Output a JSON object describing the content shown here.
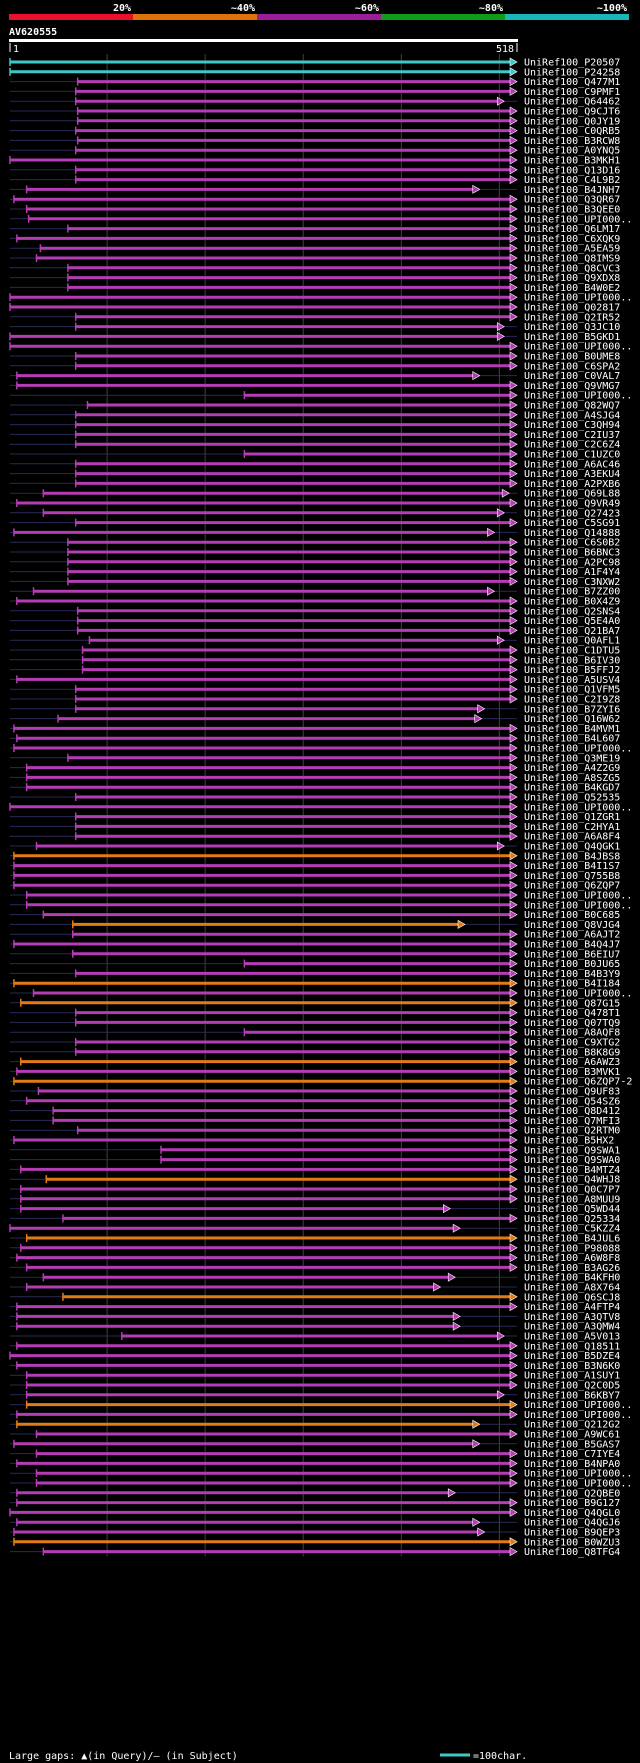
{
  "colors": {
    "background": "#000000",
    "text": "#ffffff",
    "bin_20": "#e8102a",
    "bin_40": "#e0720a",
    "bin_60": "#9a1e9a",
    "bin_80": "#119a1a",
    "bin_100": "#18b6b8",
    "hit_purple": "#b43cb4",
    "hit_orange": "#e27b15",
    "hit_cyan": "#40c8c8",
    "gap_marker": "#ffe060",
    "grid": "#404040",
    "thin_line": "#2a2a55"
  },
  "header": {
    "scale_labels": [
      "20%",
      "~40%",
      "~60%",
      "~80%",
      "~100%"
    ],
    "query_name": "AV620555",
    "ruler_start": "1",
    "ruler_end": "518"
  },
  "footer": {
    "legend_text": "Large gaps: ▲(in Query)/– (in Subject)",
    "scale_text": "=100char."
  },
  "hits": [
    {
      "name": "UniRef100_P20507",
      "start": 1,
      "end": 518,
      "color": "cyan"
    },
    {
      "name": "UniRef100_P24258",
      "start": 1,
      "end": 518,
      "color": "cyan"
    },
    {
      "name": "UniRef100_Q477M1",
      "start": 70,
      "end": 518,
      "color": "purple"
    },
    {
      "name": "UniRef100_C9PMF1",
      "start": 68,
      "end": 518,
      "color": "purple"
    },
    {
      "name": "UniRef100_Q64462",
      "start": 68,
      "end": 505,
      "color": "purple"
    },
    {
      "name": "UniRef100_Q9CJT6",
      "start": 70,
      "end": 518,
      "color": "purple"
    },
    {
      "name": "UniRef100_Q0JY19",
      "start": 70,
      "end": 518,
      "color": "purple"
    },
    {
      "name": "UniRef100_C0QRB5",
      "start": 68,
      "end": 518,
      "color": "purple"
    },
    {
      "name": "UniRef100_B3RCW8",
      "start": 70,
      "end": 518,
      "color": "purple"
    },
    {
      "name": "UniRef100_A0YNQ5",
      "start": 68,
      "end": 518,
      "color": "purple"
    },
    {
      "name": "UniRef100_B3MKH1",
      "start": 1,
      "end": 518,
      "color": "purple"
    },
    {
      "name": "UniRef100_Q13D16",
      "start": 68,
      "end": 518,
      "color": "purple"
    },
    {
      "name": "UniRef100_C4L9B2",
      "start": 68,
      "end": 518,
      "color": "purple"
    },
    {
      "name": "UniRef100_B4JNH7",
      "start": 18,
      "end": 480,
      "color": "purple"
    },
    {
      "name": "UniRef100_Q3QR67",
      "start": 5,
      "end": 518,
      "color": "purple"
    },
    {
      "name": "UniRef100_B3QEE0",
      "start": 18,
      "end": 518,
      "color": "purple"
    },
    {
      "name": "UniRef100_UPI000..",
      "start": 20,
      "end": 518,
      "color": "purple"
    },
    {
      "name": "UniRef100_Q6LM17",
      "start": 60,
      "end": 518,
      "color": "purple"
    },
    {
      "name": "UniRef100_C6XQK9",
      "start": 8,
      "end": 518,
      "color": "purple"
    },
    {
      "name": "UniRef100_A5EA59",
      "start": 32,
      "end": 518,
      "color": "purple"
    },
    {
      "name": "UniRef100_Q8IMS9",
      "start": 28,
      "end": 518,
      "color": "purple"
    },
    {
      "name": "UniRef100_Q8CVC3",
      "start": 60,
      "end": 518,
      "color": "purple"
    },
    {
      "name": "UniRef100_Q9XDX8",
      "start": 60,
      "end": 518,
      "color": "purple"
    },
    {
      "name": "UniRef100_B4W0E2",
      "start": 60,
      "end": 518,
      "color": "purple"
    },
    {
      "name": "UniRef100_UPI000..",
      "start": 1,
      "end": 518,
      "color": "purple"
    },
    {
      "name": "UniRef100_Q02817",
      "start": 1,
      "end": 518,
      "color": "purple"
    },
    {
      "name": "UniRef100_Q2IR52",
      "start": 68,
      "end": 518,
      "color": "purple"
    },
    {
      "name": "UniRef100_Q3JC10",
      "start": 68,
      "end": 505,
      "color": "purple"
    },
    {
      "name": "UniRef100_B5GKD1",
      "start": 1,
      "end": 505,
      "color": "purple"
    },
    {
      "name": "UniRef100_UPI000..",
      "start": 1,
      "end": 518,
      "color": "purple"
    },
    {
      "name": "UniRef100_B0UME8",
      "start": 68,
      "end": 518,
      "color": "purple"
    },
    {
      "name": "UniRef100_C6SPA2",
      "start": 68,
      "end": 518,
      "color": "purple"
    },
    {
      "name": "UniRef100_C0VAL7",
      "start": 8,
      "end": 480,
      "color": "purple"
    },
    {
      "name": "UniRef100_Q9VMG7",
      "start": 8,
      "end": 518,
      "color": "purple"
    },
    {
      "name": "UniRef100_UPI000..",
      "start": 240,
      "end": 518,
      "color": "purple"
    },
    {
      "name": "UniRef100_Q82WQ7",
      "start": 80,
      "end": 518,
      "color": "purple"
    },
    {
      "name": "UniRef100_A4SJG4",
      "start": 68,
      "end": 518,
      "color": "purple"
    },
    {
      "name": "UniRef100_C3QH94",
      "start": 68,
      "end": 518,
      "color": "purple"
    },
    {
      "name": "UniRef100_C2IU37",
      "start": 68,
      "end": 518,
      "color": "purple"
    },
    {
      "name": "UniRef100_C2C6Z4",
      "start": 68,
      "end": 518,
      "color": "purple"
    },
    {
      "name": "UniRef100_C1UZC0",
      "start": 240,
      "end": 518,
      "color": "purple"
    },
    {
      "name": "UniRef100_A6AC46",
      "start": 68,
      "end": 518,
      "color": "purple"
    },
    {
      "name": "UniRef100_A3EKU4",
      "start": 68,
      "end": 518,
      "color": "purple"
    },
    {
      "name": "UniRef100_A2PXB6",
      "start": 68,
      "end": 518,
      "color": "purple"
    },
    {
      "name": "UniRef100_Q69L88",
      "start": 35,
      "end": 510,
      "color": "purple"
    },
    {
      "name": "UniRef100_Q9VR49",
      "start": 8,
      "end": 518,
      "color": "purple"
    },
    {
      "name": "UniRef100_Q27423",
      "start": 35,
      "end": 505,
      "color": "purple"
    },
    {
      "name": "UniRef100_C5SG91",
      "start": 68,
      "end": 518,
      "color": "purple"
    },
    {
      "name": "UniRef100_Q14888",
      "start": 5,
      "end": 495,
      "color": "purple"
    },
    {
      "name": "UniRef100_C6S0B2",
      "start": 60,
      "end": 518,
      "color": "purple"
    },
    {
      "name": "UniRef100_B6BNC3",
      "start": 60,
      "end": 518,
      "color": "purple"
    },
    {
      "name": "UniRef100_A2PC98",
      "start": 60,
      "end": 518,
      "color": "purple"
    },
    {
      "name": "UniRef100_A1F4Y4",
      "start": 60,
      "end": 518,
      "color": "purple"
    },
    {
      "name": "UniRef100_C3NXW2",
      "start": 60,
      "end": 518,
      "color": "purple"
    },
    {
      "name": "UniRef100_B7ZZ00",
      "start": 25,
      "end": 495,
      "color": "purple"
    },
    {
      "name": "UniRef100_B0X4Z9",
      "start": 8,
      "end": 518,
      "color": "purple"
    },
    {
      "name": "UniRef100_Q2SNS4",
      "start": 70,
      "end": 518,
      "color": "purple"
    },
    {
      "name": "UniRef100_Q5E4A0",
      "start": 70,
      "end": 518,
      "color": "purple"
    },
    {
      "name": "UniRef100_Q21BA7",
      "start": 70,
      "end": 518,
      "color": "purple"
    },
    {
      "name": "UniRef100_Q0AFL1",
      "start": 82,
      "end": 505,
      "color": "purple"
    },
    {
      "name": "UniRef100_C1DTU5",
      "start": 75,
      "end": 518,
      "color": "purple"
    },
    {
      "name": "UniRef100_B6IV30",
      "start": 75,
      "end": 518,
      "color": "purple"
    },
    {
      "name": "UniRef100_B5FFJ2",
      "start": 75,
      "end": 518,
      "color": "purple"
    },
    {
      "name": "UniRef100_A5USV4",
      "start": 8,
      "end": 518,
      "color": "purple"
    },
    {
      "name": "UniRef100_Q1VFM5",
      "start": 68,
      "end": 518,
      "color": "purple"
    },
    {
      "name": "UniRef100_C2I9Z8",
      "start": 68,
      "end": 518,
      "color": "purple"
    },
    {
      "name": "UniRef100_B7ZYI6",
      "start": 68,
      "end": 485,
      "color": "purple"
    },
    {
      "name": "UniRef100_Q16W62",
      "start": 50,
      "end": 482,
      "color": "purple"
    },
    {
      "name": "UniRef100_B4MVM1",
      "start": 5,
      "end": 518,
      "color": "purple"
    },
    {
      "name": "UniRef100_B4L607",
      "start": 8,
      "end": 518,
      "color": "purple"
    },
    {
      "name": "UniRef100_UPI000..",
      "start": 5,
      "end": 518,
      "color": "purple"
    },
    {
      "name": "UniRef100_Q3ME19",
      "start": 60,
      "end": 518,
      "color": "purple"
    },
    {
      "name": "UniRef100_A4Z2G9",
      "start": 18,
      "end": 518,
      "color": "purple"
    },
    {
      "name": "UniRef100_A8SZG5",
      "start": 18,
      "end": 518,
      "color": "purple"
    },
    {
      "name": "UniRef100_B4KGD7",
      "start": 18,
      "end": 518,
      "color": "purple"
    },
    {
      "name": "UniRef100_Q52535",
      "start": 68,
      "end": 518,
      "color": "purple"
    },
    {
      "name": "UniRef100_UPI000..",
      "start": 1,
      "end": 518,
      "color": "purple"
    },
    {
      "name": "UniRef100_Q1ZGR1",
      "start": 68,
      "end": 518,
      "color": "purple"
    },
    {
      "name": "UniRef100_C2HYA1",
      "start": 68,
      "end": 518,
      "color": "purple"
    },
    {
      "name": "UniRef100_A6A8F4",
      "start": 68,
      "end": 518,
      "color": "purple"
    },
    {
      "name": "UniRef100_Q4QGK1",
      "start": 28,
      "end": 505,
      "color": "purple"
    },
    {
      "name": "UniRef100_B4JBS8",
      "start": 5,
      "end": 518,
      "color": "orange"
    },
    {
      "name": "UniRef100_B4I1S7",
      "start": 5,
      "end": 518,
      "color": "purple"
    },
    {
      "name": "UniRef100_Q755B8",
      "start": 5,
      "end": 518,
      "color": "purple"
    },
    {
      "name": "UniRef100_Q6ZQP7",
      "start": 5,
      "end": 518,
      "color": "purple"
    },
    {
      "name": "UniRef100_UPI000..",
      "start": 18,
      "end": 518,
      "color": "purple"
    },
    {
      "name": "UniRef100_UPI000..",
      "start": 18,
      "end": 518,
      "color": "purple"
    },
    {
      "name": "UniRef100_B0C685",
      "start": 35,
      "end": 518,
      "color": "purple"
    },
    {
      "name": "UniRef100_Q8VJG4",
      "start": 65,
      "end": 465,
      "color": "orange"
    },
    {
      "name": "UniRef100_A6AJT2",
      "start": 65,
      "end": 518,
      "color": "purple"
    },
    {
      "name": "UniRef100_B4Q4J7",
      "start": 5,
      "end": 518,
      "color": "purple"
    },
    {
      "name": "UniRef100_B6EIU7",
      "start": 65,
      "end": 518,
      "color": "purple"
    },
    {
      "name": "UniRef100_B0JU65",
      "start": 240,
      "end": 518,
      "color": "purple"
    },
    {
      "name": "UniRef100_B4B3Y9",
      "start": 68,
      "end": 518,
      "color": "purple"
    },
    {
      "name": "UniRef100_B4I184",
      "start": 5,
      "end": 518,
      "color": "orange"
    },
    {
      "name": "UniRef100_UPI000..",
      "start": 25,
      "end": 518,
      "color": "purple"
    },
    {
      "name": "UniRef100_Q87G15",
      "start": 12,
      "end": 518,
      "color": "orange"
    },
    {
      "name": "UniRef100_Q478T1",
      "start": 68,
      "end": 518,
      "color": "purple"
    },
    {
      "name": "UniRef100_Q07TQ9",
      "start": 68,
      "end": 518,
      "color": "purple"
    },
    {
      "name": "UniRef100_A8AQF8",
      "start": 240,
      "end": 518,
      "color": "purple"
    },
    {
      "name": "UniRef100_C9XTG2",
      "start": 68,
      "end": 518,
      "color": "purple"
    },
    {
      "name": "UniRef100_B8K8G9",
      "start": 68,
      "end": 518,
      "color": "purple"
    },
    {
      "name": "UniRef100_A6AWZ3",
      "start": 12,
      "end": 518,
      "color": "orange"
    },
    {
      "name": "UniRef100_B3MVK1",
      "start": 8,
      "end": 518,
      "color": "purple"
    },
    {
      "name": "UniRef100_Q6ZQP7-2",
      "start": 5,
      "end": 518,
      "color": "orange"
    },
    {
      "name": "UniRef100_Q9UF83",
      "start": 30,
      "end": 518,
      "color": "purple"
    },
    {
      "name": "UniRef100_Q54SZ6",
      "start": 18,
      "end": 518,
      "color": "purple"
    },
    {
      "name": "UniRef100_Q8D412",
      "start": 45,
      "end": 518,
      "color": "purple"
    },
    {
      "name": "UniRef100_Q7MFI3",
      "start": 45,
      "end": 518,
      "color": "purple"
    },
    {
      "name": "UniRef100_Q2RTM0",
      "start": 70,
      "end": 518,
      "color": "purple"
    },
    {
      "name": "UniRef100_B5HX2",
      "start": 5,
      "end": 518,
      "color": "purple"
    },
    {
      "name": "UniRef100_Q9SWA1",
      "start": 155,
      "end": 518,
      "color": "purple"
    },
    {
      "name": "UniRef100_Q9SWA0",
      "start": 155,
      "end": 518,
      "color": "purple"
    },
    {
      "name": "UniRef100_B4MTZ4",
      "start": 12,
      "end": 518,
      "color": "purple"
    },
    {
      "name": "UniRef100_Q4WHJ8",
      "start": 38,
      "end": 518,
      "color": "orange"
    },
    {
      "name": "UniRef100_Q0C7P7",
      "start": 12,
      "end": 518,
      "color": "purple"
    },
    {
      "name": "UniRef100_A8MUU9",
      "start": 12,
      "end": 518,
      "color": "purple"
    },
    {
      "name": "UniRef100_Q5WD44",
      "start": 12,
      "end": 450,
      "color": "purple"
    },
    {
      "name": "UniRef100_Q25334",
      "start": 55,
      "end": 518,
      "color": "purple"
    },
    {
      "name": "UniRef100_C5KZZ4",
      "start": 1,
      "end": 460,
      "color": "purple"
    },
    {
      "name": "UniRef100_B4JUL6",
      "start": 18,
      "end": 518,
      "color": "orange"
    },
    {
      "name": "UniRef100_P98088",
      "start": 12,
      "end": 518,
      "color": "purple"
    },
    {
      "name": "UniRef100_A6W8F8",
      "start": 8,
      "end": 518,
      "color": "purple"
    },
    {
      "name": "UniRef100_B3AG26",
      "start": 18,
      "end": 518,
      "color": "purple"
    },
    {
      "name": "UniRef100_B4KFH0",
      "start": 35,
      "end": 455,
      "color": "purple"
    },
    {
      "name": "UniRef100_A8X764",
      "start": 18,
      "end": 440,
      "color": "purple"
    },
    {
      "name": "UniRef100_Q6SCJ8",
      "start": 55,
      "end": 518,
      "color": "orange"
    },
    {
      "name": "UniRef100_A4FTP4",
      "start": 8,
      "end": 518,
      "color": "purple"
    },
    {
      "name": "UniRef100_A3QTV8",
      "start": 8,
      "end": 460,
      "color": "purple"
    },
    {
      "name": "UniRef100_A3QMW4",
      "start": 8,
      "end": 460,
      "color": "purple"
    },
    {
      "name": "UniRef100_A5V013",
      "start": 115,
      "end": 505,
      "color": "purple"
    },
    {
      "name": "UniRef100_Q18511",
      "start": 8,
      "end": 518,
      "color": "purple"
    },
    {
      "name": "UniRef100_B5DZE4",
      "start": 1,
      "end": 518,
      "color": "purple"
    },
    {
      "name": "UniRef100_B3N6K0",
      "start": 8,
      "end": 518,
      "color": "purple"
    },
    {
      "name": "UniRef100_A1SUY1",
      "start": 18,
      "end": 518,
      "color": "purple"
    },
    {
      "name": "UniRef100_Q2C0D5",
      "start": 18,
      "end": 518,
      "color": "purple"
    },
    {
      "name": "UniRef100_B6KBY7",
      "start": 18,
      "end": 505,
      "color": "purple"
    },
    {
      "name": "UniRef100_UPI000..",
      "start": 18,
      "end": 518,
      "color": "orange"
    },
    {
      "name": "UniRef100_UPI000..",
      "start": 8,
      "end": 518,
      "color": "purple"
    },
    {
      "name": "UniRef100_Q212G2",
      "start": 8,
      "end": 480,
      "color": "orange"
    },
    {
      "name": "UniRef100_A9WC61",
      "start": 28,
      "end": 518,
      "color": "purple"
    },
    {
      "name": "UniRef100_B5GAS7",
      "start": 5,
      "end": 480,
      "color": "purple"
    },
    {
      "name": "UniRef100_C7IYE4",
      "start": 28,
      "end": 518,
      "color": "purple"
    },
    {
      "name": "UniRef100_B4NPA0",
      "start": 8,
      "end": 518,
      "color": "purple"
    },
    {
      "name": "UniRef100_UPI000..",
      "start": 28,
      "end": 518,
      "color": "purple"
    },
    {
      "name": "UniRef100_UPI000..",
      "start": 28,
      "end": 518,
      "color": "purple"
    },
    {
      "name": "UniRef100_Q2QBE0",
      "start": 8,
      "end": 455,
      "color": "purple"
    },
    {
      "name": "UniRef100_B9G127",
      "start": 8,
      "end": 518,
      "color": "purple"
    },
    {
      "name": "UniRef100_Q4QGL0",
      "start": 1,
      "end": 518,
      "color": "purple"
    },
    {
      "name": "UniRef100_Q4QGJ6",
      "start": 8,
      "end": 480,
      "color": "purple"
    },
    {
      "name": "UniRef100_B9QEP3",
      "start": 5,
      "end": 485,
      "color": "purple"
    },
    {
      "name": "UniRef100_B0WZU3",
      "start": 5,
      "end": 518,
      "color": "orange"
    },
    {
      "name": "UniRef100_Q8TFG4",
      "start": 35,
      "end": 518,
      "color": "purple"
    }
  ]
}
